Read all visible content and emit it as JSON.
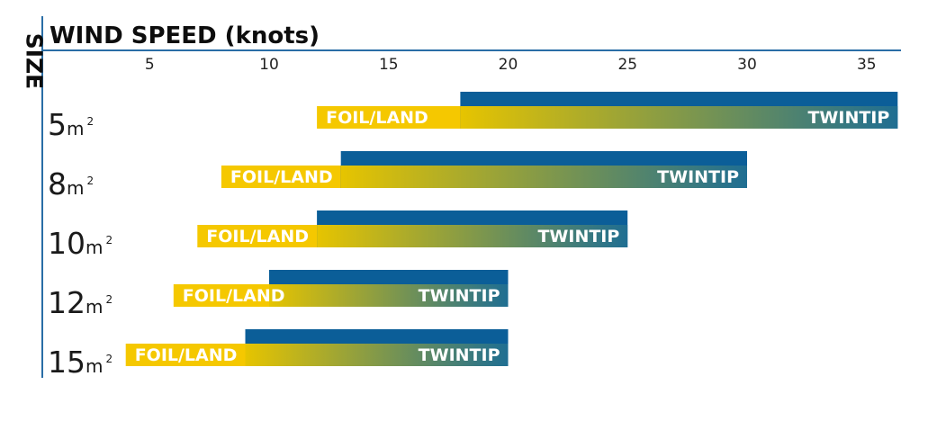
{
  "chart_data": {
    "type": "range-bar",
    "y_title": "SIZE",
    "x_title": "WIND SPEED (knots)",
    "x_ticks": [
      "5",
      "10",
      "15",
      "20",
      "25",
      "30",
      "35"
    ],
    "xlim": [
      0,
      36.3
    ],
    "size_unit": "m",
    "size_exponent": "2",
    "foil_label": "FOIL/LAND",
    "twintip_label": "TWINTIP",
    "colors": {
      "foil": "#f5c800",
      "twintip": "#0b5e98",
      "gradient_start": "#e6c400",
      "gradient_end": "#1f6e92",
      "axis": "#2a6ea6",
      "text": "#111111"
    },
    "rows": [
      {
        "size": "5",
        "foil_range": [
          12,
          25
        ],
        "twintip_range": [
          18,
          36.3
        ]
      },
      {
        "size": "8",
        "foil_range": [
          8,
          20
        ],
        "twintip_range": [
          13,
          30
        ]
      },
      {
        "size": "10",
        "foil_range": [
          7,
          17
        ],
        "twintip_range": [
          12,
          25
        ]
      },
      {
        "size": "12",
        "foil_range": [
          6,
          15
        ],
        "twintip_range": [
          10,
          20
        ]
      },
      {
        "size": "15",
        "foil_range": [
          4,
          13
        ],
        "twintip_range": [
          9,
          20
        ]
      }
    ]
  }
}
